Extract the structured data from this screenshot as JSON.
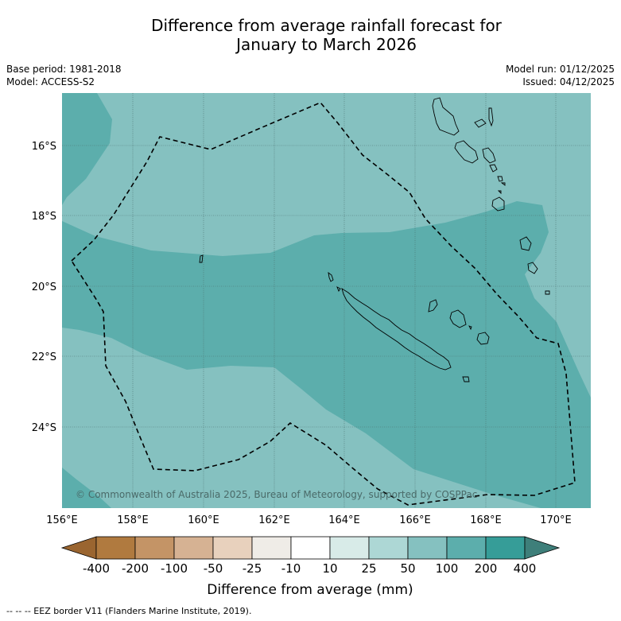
{
  "title": {
    "line1": "Difference from average rainfall forecast for",
    "line2": "January to March 2026"
  },
  "meta": {
    "base_period": "Base period: 1981-2018",
    "model": "Model: ACCESS-S2",
    "model_run": "Model run: 01/12/2025",
    "issued": "Issued: 04/12/2025"
  },
  "map": {
    "lat_labels": [
      "16°S",
      "18°S",
      "20°S",
      "22°S",
      "24°S"
    ],
    "lon_labels": [
      "156°E",
      "158°E",
      "160°E",
      "162°E",
      "164°E",
      "166°E",
      "168°E",
      "170°E"
    ],
    "copyright": "© Commonwealth of Australia 2025, Bureau of Meteorology, supported by COSPPac",
    "ocean_color_light": "#85c1c0",
    "ocean_color_mid": "#5caeac",
    "ocean_color_dark": "#3a9994"
  },
  "legend": {
    "title": "Difference from average (mm)",
    "ticks": [
      "-400",
      "-200",
      "-100",
      "-50",
      "-25",
      "-10",
      "10",
      "25",
      "50",
      "100",
      "200",
      "400"
    ],
    "colors": [
      "#b07a3f",
      "#c49466",
      "#d6b293",
      "#e8d1bd",
      "#efece7",
      "#ffffff",
      "#d8ebe8",
      "#add7d5",
      "#85c1c0",
      "#5caeac",
      "#369d98"
    ],
    "under_color": "#9a6530",
    "over_color": "#3e7f7a"
  },
  "footnote": "--  --  -- EEZ border V11 (Flanders Marine Institute, 2019)."
}
